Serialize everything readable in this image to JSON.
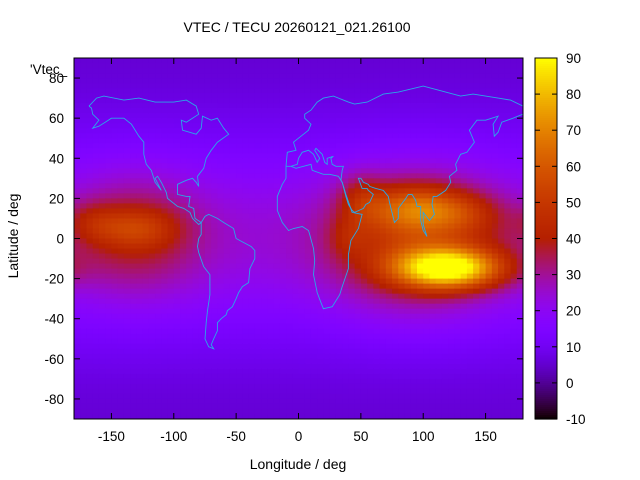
{
  "chart_data": {
    "type": "heatmap",
    "title": "VTEC / TECU 20260121_021.26100",
    "xlabel": "Longitude / deg",
    "ylabel": "Latitude / deg",
    "series_label": "'Vtec_",
    "xlim": [
      -180,
      180
    ],
    "ylim": [
      -90,
      90
    ],
    "x_ticks": [
      -150,
      -100,
      -50,
      0,
      50,
      100,
      150
    ],
    "y_ticks": [
      -80,
      -60,
      -40,
      -20,
      0,
      20,
      40,
      60,
      80
    ],
    "colorbar": {
      "range": [
        -10,
        90
      ],
      "ticks": [
        -10,
        0,
        10,
        20,
        30,
        40,
        50,
        60,
        70,
        80,
        90
      ],
      "palette": "gnuplot rgbformulae 7,5,15"
    },
    "grid": false,
    "anomalies": [
      {
        "lon": 120,
        "lat": -15,
        "lon_width": 60,
        "lat_width": 14,
        "value": 62
      },
      {
        "lon": 95,
        "lat": 15,
        "lon_width": 55,
        "lat_width": 16,
        "value": 28
      },
      {
        "lon": 135,
        "lat": 12,
        "lon_width": 40,
        "lat_width": 14,
        "value": 10
      },
      {
        "lon": 50,
        "lat": 20,
        "lon_width": 25,
        "lat_width": 18,
        "value": 12
      },
      {
        "lon": 40,
        "lat": 0,
        "lon_width": 22,
        "lat_width": 14,
        "value": 8
      },
      {
        "lon": -130,
        "lat": 5,
        "lon_width": 45,
        "lat_width": 14,
        "value": 16
      },
      {
        "lon": -165,
        "lat": 8,
        "lon_width": 30,
        "lat_width": 14,
        "value": 10
      }
    ],
    "coastlines": [
      [
        [
          -168,
          66
        ],
        [
          -162,
          70
        ],
        [
          -156,
          71
        ],
        [
          -140,
          69
        ],
        [
          -128,
          70
        ],
        [
          -115,
          68
        ],
        [
          -100,
          68
        ],
        [
          -90,
          69
        ],
        [
          -82,
          66
        ],
        [
          -80,
          62
        ],
        [
          -90,
          58
        ],
        [
          -94,
          59
        ],
        [
          -93,
          54
        ],
        [
          -82,
          52
        ],
        [
          -78,
          55
        ],
        [
          -77,
          61
        ],
        [
          -70,
          59
        ],
        [
          -65,
          60
        ],
        [
          -60,
          55
        ],
        [
          -56,
          52
        ],
        [
          -65,
          48
        ],
        [
          -70,
          44
        ],
        [
          -74,
          40
        ],
        [
          -76,
          35
        ],
        [
          -81,
          31
        ],
        [
          -80,
          26
        ],
        [
          -82,
          28
        ],
        [
          -85,
          30
        ],
        [
          -90,
          29
        ],
        [
          -97,
          27
        ],
        [
          -97,
          22
        ],
        [
          -90,
          21
        ],
        [
          -87,
          21
        ],
        [
          -88,
          16
        ],
        [
          -84,
          15
        ],
        [
          -83,
          10
        ],
        [
          -78,
          8
        ],
        [
          -80,
          7
        ],
        [
          -85,
          10
        ],
        [
          -87,
          13
        ],
        [
          -92,
          15
        ],
        [
          -97,
          16
        ],
        [
          -105,
          20
        ],
        [
          -106,
          23
        ],
        [
          -110,
          28
        ],
        [
          -113,
          31
        ],
        [
          -115,
          30
        ],
        [
          -110,
          24
        ],
        [
          -115,
          28
        ],
        [
          -118,
          34
        ],
        [
          -122,
          37
        ],
        [
          -124,
          42
        ],
        [
          -124,
          48
        ],
        [
          -128,
          51
        ],
        [
          -134,
          57
        ],
        [
          -140,
          60
        ],
        [
          -150,
          60
        ],
        [
          -155,
          58
        ],
        [
          -160,
          56
        ],
        [
          -165,
          55
        ],
        [
          -160,
          59
        ],
        [
          -165,
          62
        ],
        [
          -166,
          65
        ],
        [
          -168,
          66
        ]
      ],
      [
        [
          -78,
          8
        ],
        [
          -75,
          11
        ],
        [
          -72,
          12
        ],
        [
          -65,
          10
        ],
        [
          -60,
          8
        ],
        [
          -52,
          5
        ],
        [
          -50,
          0
        ],
        [
          -44,
          -2
        ],
        [
          -38,
          -4
        ],
        [
          -35,
          -6
        ],
        [
          -35,
          -10
        ],
        [
          -39,
          -15
        ],
        [
          -40,
          -22
        ],
        [
          -45,
          -24
        ],
        [
          -48,
          -27
        ],
        [
          -50,
          -30
        ],
        [
          -53,
          -34
        ],
        [
          -57,
          -36
        ],
        [
          -58,
          -38
        ],
        [
          -62,
          -40
        ],
        [
          -65,
          -42
        ],
        [
          -65,
          -46
        ],
        [
          -68,
          -50
        ],
        [
          -70,
          -53
        ],
        [
          -68,
          -55
        ],
        [
          -72,
          -54
        ],
        [
          -75,
          -50
        ],
        [
          -74,
          -42
        ],
        [
          -73,
          -36
        ],
        [
          -71,
          -28
        ],
        [
          -71,
          -18
        ],
        [
          -76,
          -14
        ],
        [
          -80,
          -7
        ],
        [
          -81,
          -4
        ],
        [
          -80,
          0
        ],
        [
          -78,
          2
        ],
        [
          -78,
          8
        ]
      ],
      [
        [
          -10,
          36
        ],
        [
          -6,
          36
        ],
        [
          -2,
          35
        ],
        [
          10,
          37
        ],
        [
          11,
          34
        ],
        [
          20,
          32
        ],
        [
          25,
          32
        ],
        [
          32,
          31
        ],
        [
          35,
          28
        ],
        [
          38,
          22
        ],
        [
          43,
          13
        ],
        [
          51,
          12
        ],
        [
          48,
          5
        ],
        [
          42,
          -1
        ],
        [
          40,
          -8
        ],
        [
          40,
          -15
        ],
        [
          35,
          -24
        ],
        [
          33,
          -28
        ],
        [
          27,
          -34
        ],
        [
          20,
          -35
        ],
        [
          18,
          -32
        ],
        [
          15,
          -27
        ],
        [
          12,
          -18
        ],
        [
          13,
          -11
        ],
        [
          12,
          -5
        ],
        [
          9,
          2
        ],
        [
          8,
          4
        ],
        [
          3,
          6
        ],
        [
          -4,
          5
        ],
        [
          -8,
          4
        ],
        [
          -13,
          8
        ],
        [
          -17,
          14
        ],
        [
          -17,
          21
        ],
        [
          -13,
          27
        ],
        [
          -10,
          30
        ],
        [
          -10,
          36
        ]
      ],
      [
        [
          -10,
          36
        ],
        [
          -9,
          43
        ],
        [
          -2,
          44
        ],
        [
          -4,
          48
        ],
        [
          2,
          51
        ],
        [
          8,
          54
        ],
        [
          10,
          57
        ],
        [
          5,
          60
        ],
        [
          5,
          62
        ],
        [
          10,
          64
        ],
        [
          15,
          68
        ],
        [
          20,
          70
        ],
        [
          28,
          71
        ],
        [
          40,
          68
        ],
        [
          45,
          67
        ],
        [
          55,
          68
        ],
        [
          68,
          72
        ],
        [
          80,
          73
        ],
        [
          100,
          76
        ],
        [
          112,
          74
        ],
        [
          130,
          71
        ],
        [
          140,
          72
        ],
        [
          160,
          70
        ],
        [
          170,
          69
        ],
        [
          180,
          66
        ]
      ],
      [
        [
          180,
          62
        ],
        [
          172,
          60
        ],
        [
          163,
          58
        ],
        [
          160,
          53
        ],
        [
          157,
          51
        ],
        [
          156,
          57
        ],
        [
          160,
          61
        ],
        [
          150,
          59
        ],
        [
          143,
          59
        ],
        [
          137,
          54
        ],
        [
          141,
          48
        ],
        [
          135,
          43
        ],
        [
          130,
          42
        ],
        [
          126,
          37
        ],
        [
          127,
          34
        ],
        [
          121,
          31
        ],
        [
          122,
          28
        ],
        [
          118,
          24
        ],
        [
          111,
          21
        ],
        [
          108,
          21
        ],
        [
          107,
          17
        ],
        [
          109,
          12
        ],
        [
          105,
          9
        ],
        [
          100,
          13
        ],
        [
          100,
          7
        ],
        [
          103,
          1
        ],
        [
          100,
          4
        ],
        [
          98,
          9
        ],
        [
          98,
          16
        ],
        [
          95,
          16
        ],
        [
          94,
          19
        ],
        [
          91,
          22
        ],
        [
          88,
          22
        ],
        [
          86,
          20
        ],
        [
          80,
          15
        ],
        [
          80,
          10
        ],
        [
          77,
          8
        ],
        [
          73,
          18
        ],
        [
          72,
          21
        ],
        [
          68,
          24
        ],
        [
          62,
          25
        ],
        [
          57,
          26
        ],
        [
          56,
          27
        ],
        [
          52,
          28
        ],
        [
          50,
          30
        ],
        [
          48,
          30
        ],
        [
          51,
          25
        ],
        [
          55,
          25
        ],
        [
          56,
          24
        ],
        [
          60,
          22
        ],
        [
          57,
          18
        ],
        [
          54,
          17
        ],
        [
          52,
          15
        ],
        [
          45,
          13
        ],
        [
          43,
          14
        ],
        [
          40,
          17
        ],
        [
          38,
          21
        ],
        [
          35,
          28
        ],
        [
          34,
          29
        ],
        [
          35,
          34
        ],
        [
          36,
          36
        ],
        [
          30,
          36
        ],
        [
          27,
          37
        ],
        [
          26,
          40
        ],
        [
          28,
          41
        ],
        [
          23,
          40
        ],
        [
          23,
          37
        ],
        [
          21,
          38
        ],
        [
          19,
          42
        ],
        [
          14,
          45
        ],
        [
          13,
          44
        ],
        [
          17,
          40
        ],
        [
          15,
          38
        ],
        [
          12,
          42
        ],
        [
          8,
          44
        ],
        [
          3,
          43
        ],
        [
          0,
          40
        ],
        [
          -1,
          37
        ],
        [
          -6,
          36
        ]
      ]
    ]
  }
}
